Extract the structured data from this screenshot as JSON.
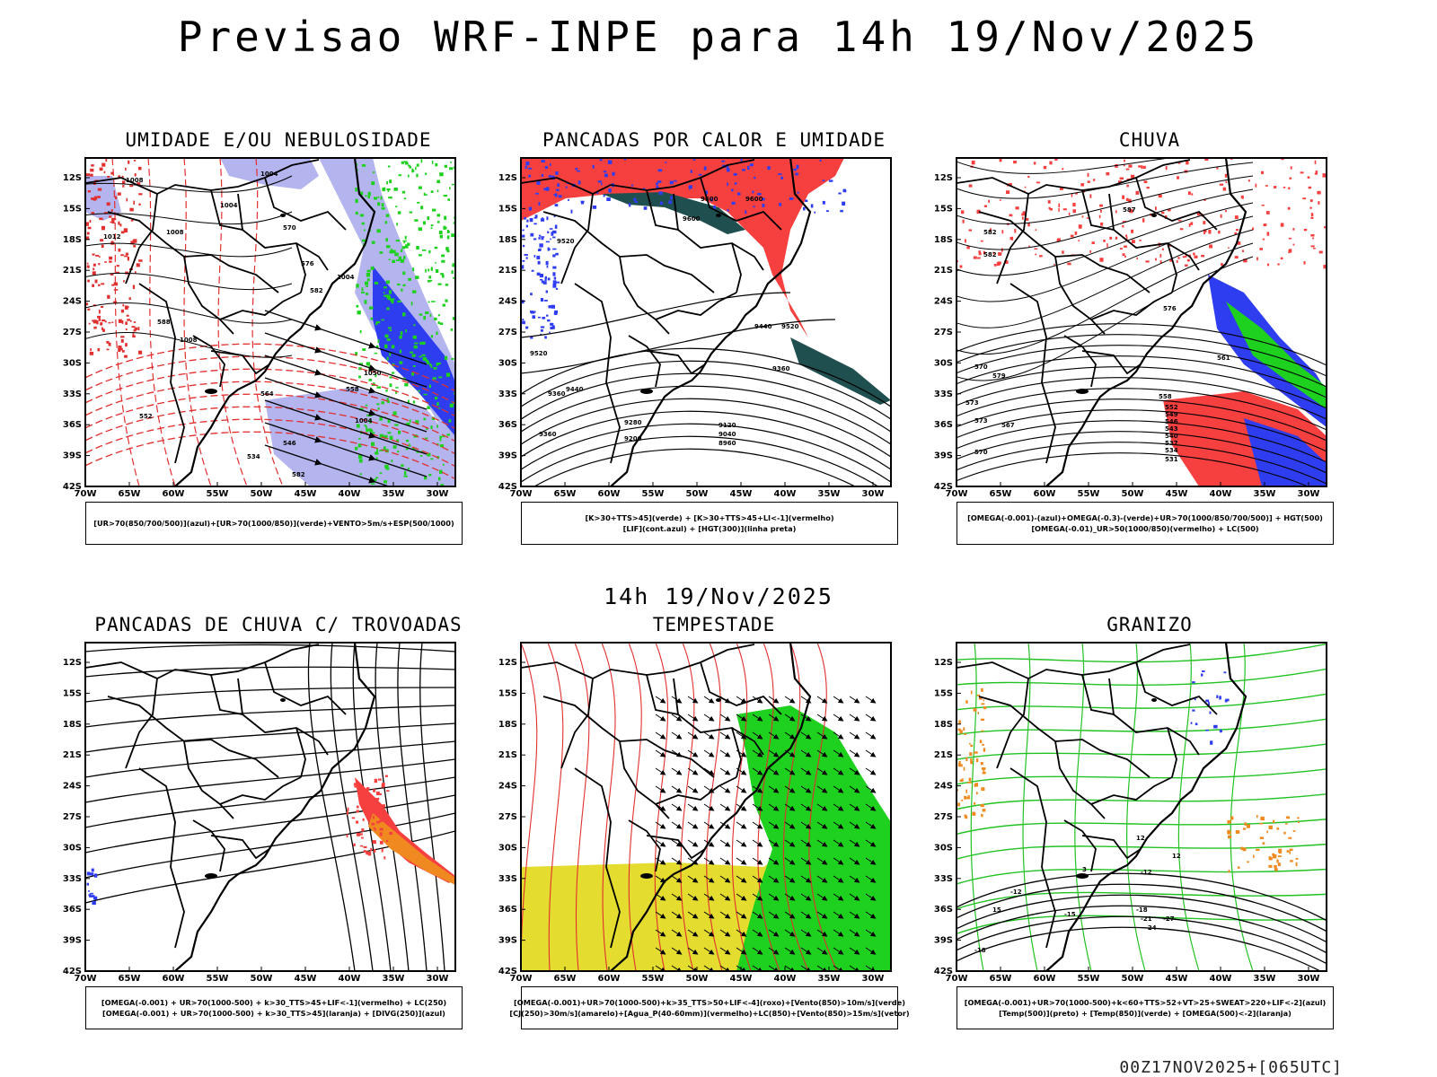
{
  "header": {
    "main_title": "Previsao WRF-INPE  para 14h 19/Nov/2025",
    "sub_title": "14h 19/Nov/2025",
    "run_info": "00Z17NOV2025+[065UTC]"
  },
  "axes": {
    "lat_labels": [
      "12S",
      "15S",
      "18S",
      "21S",
      "24S",
      "27S",
      "30S",
      "33S",
      "36S",
      "39S",
      "42S"
    ],
    "lon_labels": [
      "70W",
      "65W",
      "60W",
      "55W",
      "50W",
      "45W",
      "40W",
      "35W",
      "30W"
    ]
  },
  "panels": [
    {
      "id": "umidade",
      "title": "UMIDADE E/OU NEBULOSIDADE",
      "legend": [
        "[UR>70(850/700/500)](azul)+[UR>70(1000/850)](verde)+VENTO>5m/s+ESP(500/1000)"
      ],
      "contour_labels": [
        "1004",
        "1008",
        "1012",
        "1004",
        "1008",
        "570",
        "576",
        "582",
        "588",
        "1004",
        "1008",
        "564",
        "552",
        "558",
        "1004",
        "1050",
        "546",
        "534",
        "582"
      ]
    },
    {
      "id": "pancadas-calor",
      "title": "PANCADAS POR CALOR E UMIDADE",
      "legend": [
        "[K>30+TTS>45](verde) + [K>30+TTS>45+LI<-1](vermelho)",
        "[LIF](cont.azul) + [HGT(300)](linha preta)"
      ],
      "contour_labels": [
        "9600",
        "9600",
        "9600",
        "9520",
        "9520",
        "9440",
        "9360",
        "9280",
        "9200",
        "9120",
        "9040",
        "8960",
        "9520",
        "9360",
        "9440",
        "9360"
      ]
    },
    {
      "id": "chuva",
      "title": "CHUVA",
      "legend": [
        "[OMEGA(-0.001)-(azul)+OMEGA(-0.3)-(verde)+UR>70(1000/850/700/500)] + HGT(500)",
        "[OMEGA(-0.01)_UR>50(1000/850)(vermelho) + LC(500)"
      ],
      "contour_labels": [
        "582",
        "576",
        "570",
        "573",
        "567",
        "561",
        "558",
        "552",
        "549",
        "546",
        "543",
        "540",
        "537",
        "534",
        "531",
        "587",
        "582",
        "579",
        "573",
        "570"
      ]
    },
    {
      "id": "trovoadas",
      "title": "PANCADAS DE CHUVA C/ TROVOADAS",
      "legend": [
        "[OMEGA(-0.001) + UR>70(1000-500) + k>30_TTS>45+LIF<-1](vermelho) + LC(250)",
        "[OMEGA(-0.001) + UR>70(1000-500) + k>30_TTS>45](laranja) + [DIVG(250)](azul)"
      ],
      "contour_labels": []
    },
    {
      "id": "tempestade",
      "title": "TEMPESTADE",
      "legend": [
        "[OMEGA(-0.001)+UR>70(1000-500)+k>35_TTS>50+LIF<-4](roxo)+[Vento(850)>10m/s](verde)",
        "[CJ(250)>30m/s](amarelo)+[Agua_P(40-60mm)](vermelho)+LC(850)+[Vento(850)>15m/s](vetor)"
      ],
      "contour_labels": []
    },
    {
      "id": "granizo",
      "title": "GRANIZO",
      "legend": [
        "[OMEGA(-0.001)+UR>70(1000-500)+k<60+TTS>52+VT>25+SWEAT>220+LIF<-2](azul)",
        "[Temp(500)](preto) + [Temp(850)](verde) + [OMEGA(500)<-2](laranja)"
      ],
      "contour_labels": [
        "3",
        "-12",
        "-12",
        "-15",
        "-18",
        "-21",
        "-24",
        "-27",
        "-18",
        "12",
        "12",
        "15"
      ]
    }
  ],
  "colors": {
    "blue_light": "#b4b4ee",
    "blue": "#2f3df0",
    "green": "#1fd11f",
    "red": "#f5403f",
    "dark_teal": "#1f4f4f",
    "orange": "#f08a20",
    "yellow": "#e4dc2e",
    "contour_red": "#e03030",
    "contour_green": "#22c222"
  }
}
